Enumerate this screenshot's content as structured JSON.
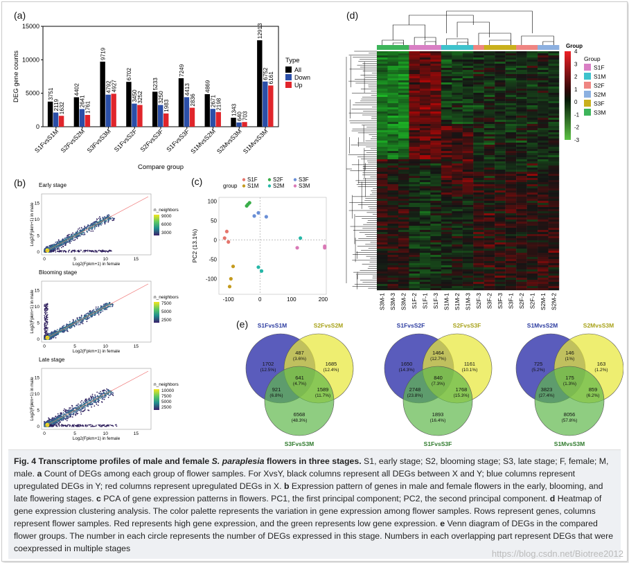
{
  "panels": {
    "a": {
      "label": "(a)"
    },
    "b": {
      "label": "(b)"
    },
    "c": {
      "label": "(c)"
    },
    "d": {
      "label": "(d)"
    },
    "e": {
      "label": "(e)"
    }
  },
  "chart_data": [
    {
      "id": "a",
      "type": "bar",
      "title": "",
      "xlabel": "Compare group",
      "ylabel": "DEG gene counts",
      "ylim": [
        0,
        15000
      ],
      "yticks": [
        0,
        5000,
        10000,
        15000
      ],
      "legend_title": "Type",
      "categories": [
        "S1FvsS1M",
        "S2FvsS2M",
        "S3FvsS3M",
        "S1FvsS2F",
        "S2FvsS3F",
        "S1FvsS3F",
        "S1MvsS2M",
        "S2MvsS3M",
        "S1MvsS3M"
      ],
      "series": [
        {
          "name": "All",
          "color": "#000000",
          "values": [
            3751,
            4402,
            9719,
            6702,
            5233,
            7249,
            4869,
            1343,
            12913
          ]
        },
        {
          "name": "Down",
          "color": "#2b4fa8",
          "values": [
            2119,
            2641,
            4792,
            3450,
            3250,
            4413,
            2671,
            640,
            6752
          ]
        },
        {
          "name": "Up",
          "color": "#e0252b",
          "values": [
            1632,
            1761,
            4927,
            3252,
            1983,
            2836,
            2198,
            703,
            6161
          ]
        }
      ]
    },
    {
      "id": "b",
      "type": "scatter",
      "subplots": [
        {
          "title": "Early stage",
          "xlabel": "Log2(Fpkm+1) in female",
          "ylabel": "Log2(Fpkm+1) in male",
          "legend_title": "n_neighbors",
          "legend_values": [
            9000,
            6000,
            3000
          ],
          "xticks": [
            0,
            5,
            10,
            15
          ],
          "yticks": [
            0,
            5,
            10,
            15
          ]
        },
        {
          "title": "Blooming stage",
          "xlabel": "Log2(Fpkm+1) in female",
          "ylabel": "Log2(Fpkm+1) in male",
          "legend_title": "n_neighbors",
          "legend_values": [
            7500,
            5000,
            2500
          ],
          "xticks": [
            0,
            5,
            10,
            15
          ],
          "yticks": [
            0,
            5,
            10,
            15
          ]
        },
        {
          "title": "Late stage",
          "xlabel": "Log2(Fpkm+1) in female",
          "ylabel": "Log2(Fpkm+1) in male",
          "legend_title": "n_neighbors",
          "legend_values": [
            10000,
            7500,
            5000,
            2500
          ],
          "xticks": [
            0,
            5,
            10,
            15
          ],
          "yticks": [
            0,
            5,
            10,
            15
          ]
        }
      ]
    },
    {
      "id": "c",
      "type": "scatter",
      "xlabel": "PC1 (29.3%)",
      "ylabel": "PC2 (13.1%)",
      "xlim": [
        -130,
        210
      ],
      "ylim": [
        -140,
        110
      ],
      "xticks": [
        -100,
        0,
        100,
        200
      ],
      "yticks": [
        -100,
        -50,
        0,
        50,
        100
      ],
      "legend_title": "group",
      "series": [
        {
          "name": "S1F",
          "color": "#e5756c",
          "points": [
            [
              -105,
              22
            ],
            [
              -112,
              5
            ],
            [
              -100,
              -5
            ]
          ]
        },
        {
          "name": "S1M",
          "color": "#c49a1d",
          "points": [
            [
              -85,
              -68
            ],
            [
              -92,
              -100
            ],
            [
              -96,
              -120
            ]
          ]
        },
        {
          "name": "S2F",
          "color": "#3aae4a",
          "points": [
            [
              -38,
              92
            ],
            [
              -33,
              96
            ],
            [
              -42,
              88
            ]
          ]
        },
        {
          "name": "S2M",
          "color": "#25b7a7",
          "points": [
            [
              -5,
              -70
            ],
            [
              5,
              -80
            ],
            [
              128,
              5
            ]
          ]
        },
        {
          "name": "S3F",
          "color": "#6a8fd6",
          "points": [
            [
              -18,
              62
            ],
            [
              20,
              60
            ],
            [
              -5,
              70
            ]
          ]
        },
        {
          "name": "S3M",
          "color": "#d979b6",
          "points": [
            [
              118,
              -20
            ],
            [
              205,
              -20
            ],
            [
              205,
              -16
            ]
          ]
        }
      ]
    },
    {
      "id": "d",
      "type": "heatmap",
      "columns": [
        "S3M-1",
        "S3M-3",
        "S3M-2",
        "S1F-2",
        "S1F-1",
        "S1F-3",
        "S1M-1",
        "S1M-2",
        "S1M-3",
        "S2F-3",
        "S3F-2",
        "S3F-3",
        "S3F-1",
        "S2F-2",
        "S2F-1",
        "S2M-1",
        "S2M-2"
      ],
      "column_groups": [
        "S3M",
        "S3M",
        "S3M",
        "S1F",
        "S1F",
        "S1F",
        "S1M",
        "S1M",
        "S1M",
        "S2F",
        "S3F",
        "S3F",
        "S3F",
        "S2F",
        "S2F",
        "S2M",
        "S2M"
      ],
      "scale_values": [
        4,
        3,
        2,
        1,
        0,
        -1,
        -2,
        -3
      ],
      "scale_labels": [
        "4",
        "3",
        "2",
        "1",
        "0",
        "-1",
        "-2",
        "-3"
      ],
      "legend_title": "Group",
      "groups": [
        {
          "name": "S1F",
          "color": "#d97fc4"
        },
        {
          "name": "S1M",
          "color": "#3fc2cc"
        },
        {
          "name": "S2F",
          "color": "#ef8582"
        },
        {
          "name": "S2M",
          "color": "#8cb0e0"
        },
        {
          "name": "S3F",
          "color": "#c9b01c"
        },
        {
          "name": "S3M",
          "color": "#3db45a"
        }
      ]
    }
  ],
  "venn": [
    {
      "top_left": "S1FvsS1M",
      "top_right": "S2FvsS2M",
      "bottom": "S3FvsS3M",
      "regions": {
        "a": "1702",
        "a_p": "(12.5%)",
        "b": "1685",
        "b_p": "(12.4%)",
        "c": "6568",
        "c_p": "(48.3%)",
        "ab": "487",
        "ab_p": "(3.6%)",
        "ac": "921",
        "ac_p": "(6.8%)",
        "bc": "1589",
        "bc_p": "(11.7%)",
        "abc": "641",
        "abc_p": "(4.7%)"
      }
    },
    {
      "top_left": "S1FvsS2F",
      "top_right": "S2FvsS3F",
      "bottom": "S1FvsS3F",
      "regions": {
        "a": "1650",
        "a_p": "(14.3%)",
        "b": "1161",
        "b_p": "(10.1%)",
        "c": "1893",
        "c_p": "(16.4%)",
        "ab": "1464",
        "ab_p": "(12.7%)",
        "ac": "2748",
        "ac_p": "(23.8%)",
        "bc": "1768",
        "bc_p": "(15.3%)",
        "abc": "840",
        "abc_p": "(7.3%)"
      }
    },
    {
      "top_left": "S1MvsS2M",
      "top_right": "S2MvsS3M",
      "bottom": "S1MvsS3M",
      "regions": {
        "a": "725",
        "a_p": "(5.2%)",
        "b": "163",
        "b_p": "(1.2%)",
        "c": "8056",
        "c_p": "(57.8%)",
        "ab": "146",
        "ab_p": "(1%)",
        "ac": "3823",
        "ac_p": "(27.4%)",
        "bc": "859",
        "bc_p": "(6.2%)",
        "abc": "175",
        "abc_p": "(1.3%)"
      }
    }
  ],
  "caption": {
    "fig": "Fig. 4 Transcriptome profiles of male and female ",
    "species": "S. paraplesia",
    "fig_end": " flowers in three stages.",
    "intro": " S1, early stage; S2, blooming stage; S3, late stage; F, female; M, male. ",
    "a_tag": "a",
    "a_text": " Count of DEGs among each group of flower samples. For XvsY, black columns represent all DEGs between X and Y; blue columns represent upregulated DEGs in Y; red columns represent upregulated DEGs in X. ",
    "b_tag": "b",
    "b_text": " Expression pattern of genes in male and female flowers in the early, blooming, and late flowering stages. ",
    "c_tag": "c",
    "c_text": " PCA of gene expression patterns in flowers. PC1, the first principal component; PC2, the second principal component. ",
    "d_tag": "d",
    "d_text": " Heatmap of gene expression clustering analysis. The color palette represents the variation in gene expression among flower samples. Rows represent genes, columns represent flower samples. Red represents high gene expression, and the green represents low gene expression. ",
    "e_tag": "e",
    "e_text": " Venn diagram of DEGs in the compared flower groups. The number in each circle represents the number of DEGs expressed in this stage. Numbers in each overlapping part represent DEGs that were coexpressed in multiple stages"
  },
  "watermark": "https://blog.csdn.net/Biotree2012"
}
